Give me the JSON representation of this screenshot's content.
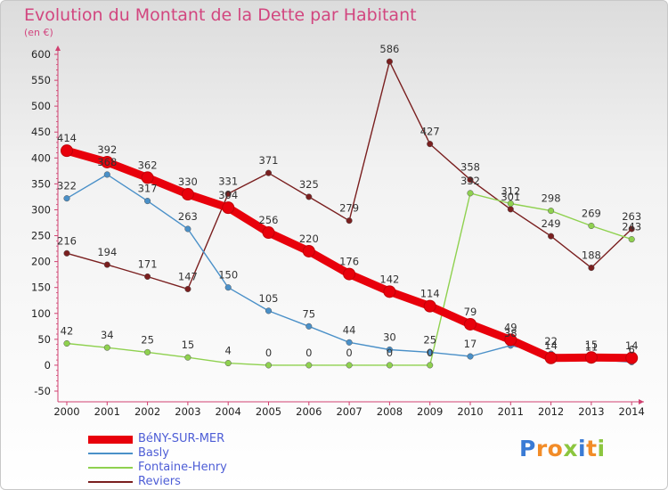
{
  "header": {
    "title": "Evolution du Montant de la Dette par Habitant",
    "subtitle": "(en €)"
  },
  "logo": {
    "letters": [
      {
        "ch": "P",
        "color": "#3a7bd5"
      },
      {
        "ch": "r",
        "color": "#f28c28"
      },
      {
        "ch": "o",
        "color": "#f28c28"
      },
      {
        "ch": "x",
        "color": "#8cc63f"
      },
      {
        "ch": "i",
        "color": "#3a7bd5"
      },
      {
        "ch": "t",
        "color": "#f28c28"
      },
      {
        "ch": "i",
        "color": "#8cc63f"
      }
    ]
  },
  "chart_data": {
    "type": "line",
    "title": "Evolution du Montant de la Dette par Habitant",
    "ylabel": "(en €)",
    "xlabel": "",
    "x": [
      "2000",
      "2001",
      "2002",
      "2003",
      "2004",
      "2005",
      "2006",
      "2007",
      "2008",
      "2009",
      "2010",
      "2011",
      "2012",
      "2013",
      "2014"
    ],
    "yticks": [
      -50,
      0,
      50,
      100,
      150,
      200,
      250,
      300,
      350,
      400,
      450,
      500,
      550,
      600
    ],
    "ylim": [
      -50,
      600
    ],
    "grid": false,
    "legend_position": "bottom-left",
    "series": [
      {
        "name": "BéNY-SUR-MER",
        "color": "#e8000b",
        "values": [
          414,
          392,
          362,
          330,
          304,
          256,
          220,
          176,
          142,
          114,
          79,
          49,
          14,
          15,
          14
        ],
        "labels": [
          "414",
          "392",
          "362",
          "330",
          "304",
          "256",
          "220",
          "176",
          "142",
          "114",
          "79",
          "49",
          "14",
          "15",
          "14"
        ]
      },
      {
        "name": "Basly",
        "color": "#4a90c8",
        "values": [
          322,
          368,
          317,
          263,
          150,
          105,
          75,
          44,
          30,
          25,
          17,
          38,
          22,
          11,
          6
        ],
        "labels": [
          "322",
          "368",
          "317",
          "263",
          "150",
          "105",
          "75",
          "44",
          "30",
          "25",
          "17",
          "38",
          "22",
          "11",
          "6"
        ]
      },
      {
        "name": "Fontaine-Henry",
        "color": "#8fd14f",
        "values": [
          42,
          34,
          25,
          15,
          4,
          0,
          0,
          0,
          0,
          0,
          332,
          312,
          298,
          269,
          243
        ],
        "labels": [
          "42",
          "34",
          "25",
          "15",
          "4",
          "0",
          "0",
          "0",
          "0",
          "0",
          "332",
          "312",
          "298",
          "269",
          "243"
        ]
      },
      {
        "name": "Reviers",
        "color": "#7a1f1f",
        "values": [
          216,
          194,
          171,
          147,
          331,
          371,
          325,
          279,
          586,
          427,
          358,
          301,
          249,
          188,
          263
        ],
        "labels": [
          "216",
          "194",
          "171",
          "147",
          "331",
          "371",
          "325",
          "279",
          "586",
          "427",
          "358",
          "301",
          "249",
          "188",
          "263"
        ]
      }
    ]
  }
}
